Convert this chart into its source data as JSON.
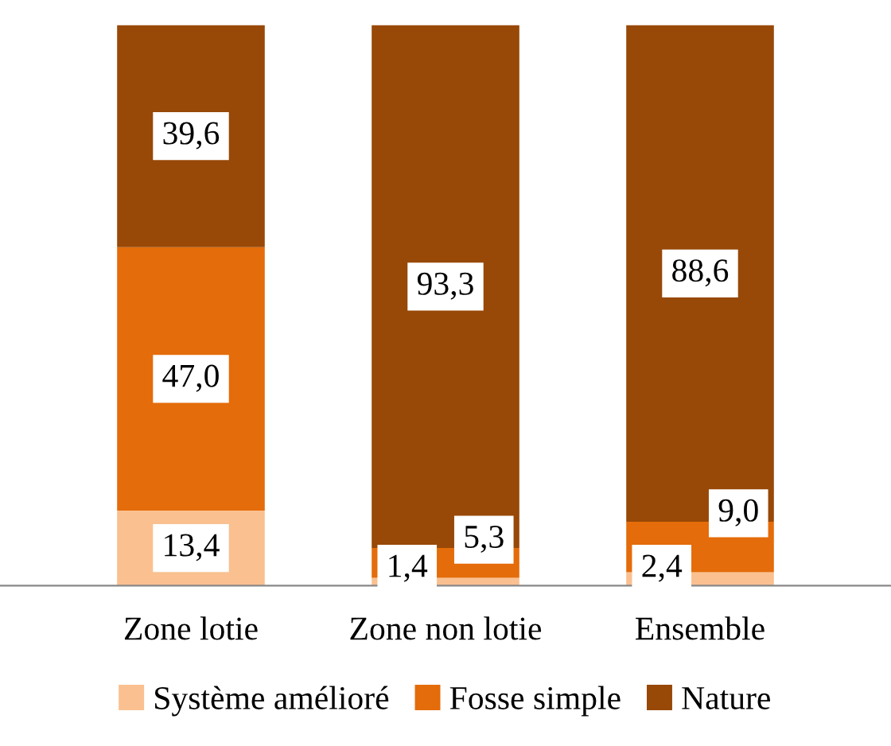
{
  "chart_data": {
    "type": "bar",
    "stacked": true,
    "categories": [
      "Zone lotie",
      "Zone non lotie",
      "Ensemble"
    ],
    "series": [
      {
        "name": "Système amélioré",
        "color": "#fac090",
        "values": [
          13.4,
          1.4,
          2.4
        ],
        "value_labels": [
          "13,4",
          "1,4",
          "2,4"
        ]
      },
      {
        "name": "Fosse simple",
        "color": "#e46c0a",
        "values": [
          47.0,
          5.3,
          9.0
        ],
        "value_labels": [
          "47,0",
          "5,3",
          "9,0"
        ]
      },
      {
        "name": "Nature",
        "color": "#984807",
        "values": [
          39.6,
          93.3,
          88.6
        ],
        "value_labels": [
          "39,6",
          "93,3",
          "88,6"
        ]
      }
    ],
    "legend": "bottom",
    "grid": false
  }
}
